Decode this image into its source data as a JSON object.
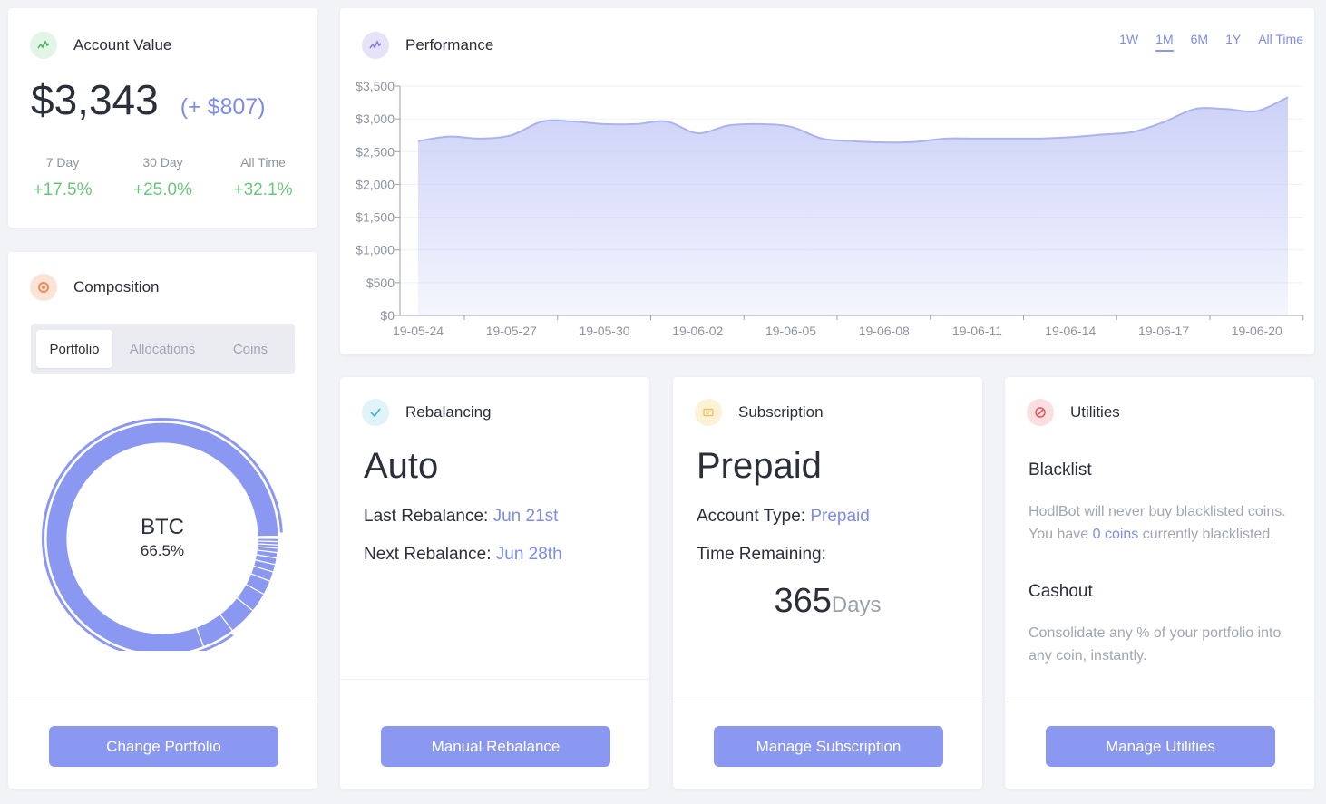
{
  "account_value": {
    "title": "Account Value",
    "value": "$3,343",
    "change": "(+ $807)",
    "stats": [
      {
        "label": "7 Day",
        "value": "+17.5%"
      },
      {
        "label": "30 Day",
        "value": "+25.0%"
      },
      {
        "label": "All Time",
        "value": "+32.1%"
      }
    ]
  },
  "composition": {
    "title": "Composition",
    "tabs": [
      "Portfolio",
      "Allocations",
      "Coins"
    ],
    "active_tab": "Portfolio",
    "center_label": "BTC",
    "center_value": "66.5%",
    "button": "Change Portfolio"
  },
  "performance": {
    "title": "Performance",
    "ranges": [
      "1W",
      "1M",
      "6M",
      "1Y",
      "All Time"
    ],
    "active_range": "1M"
  },
  "chart_data": {
    "type": "area",
    "title": "Performance",
    "xlabel": "",
    "ylabel": "",
    "ylim": [
      0,
      3500
    ],
    "yticks": [
      "$0",
      "$500",
      "$1,000",
      "$1,500",
      "$2,000",
      "$2,500",
      "$3,000",
      "$3,500"
    ],
    "xticks": [
      "19-05-24",
      "19-05-27",
      "19-05-30",
      "19-06-02",
      "19-06-05",
      "19-06-08",
      "19-06-11",
      "19-06-14",
      "19-06-17",
      "19-06-20"
    ],
    "x": [
      0,
      1,
      2,
      3,
      4,
      5,
      6,
      7,
      8,
      9,
      10,
      11,
      12,
      13,
      14,
      15,
      16,
      17,
      18,
      19,
      20,
      21,
      22,
      23,
      24,
      25,
      26,
      27,
      28
    ],
    "values": [
      2660,
      2730,
      2700,
      2750,
      2960,
      2960,
      2920,
      2920,
      2960,
      2780,
      2900,
      2920,
      2880,
      2700,
      2660,
      2640,
      2650,
      2700,
      2700,
      2700,
      2700,
      2720,
      2760,
      2800,
      2950,
      3150,
      3150,
      3120,
      3330
    ],
    "grid": true
  },
  "rebalancing": {
    "title": "Rebalancing",
    "mode": "Auto",
    "last_label": "Last Rebalance:",
    "last_value": "Jun 21st",
    "next_label": "Next Rebalance:",
    "next_value": "Jun 28th",
    "button": "Manual Rebalance"
  },
  "subscription": {
    "title": "Subscription",
    "plan": "Prepaid",
    "type_label": "Account Type:",
    "type_value": "Prepaid",
    "remaining_label": "Time Remaining:",
    "remaining_number": "365",
    "remaining_unit": "Days",
    "button": "Manage Subscription"
  },
  "utilities": {
    "title": "Utilities",
    "blacklist_title": "Blacklist",
    "blacklist_text_1": "HodlBot will never buy blacklisted coins. You have ",
    "blacklist_count": "0 coins",
    "blacklist_text_2": " currently blacklisted.",
    "cashout_title": "Cashout",
    "cashout_text": "Consolidate any % of your portfolio into any coin, instantly.",
    "button": "Manage Utilities"
  },
  "colors": {
    "accent": "#8b98f2",
    "positive": "#6cc57c",
    "area_fill": "#c9cff7"
  },
  "icons": {
    "account": "trend-icon",
    "composition": "pie-icon",
    "performance": "trend-icon",
    "rebalancing": "check-icon",
    "subscription": "card-icon",
    "utilities": "block-icon"
  }
}
